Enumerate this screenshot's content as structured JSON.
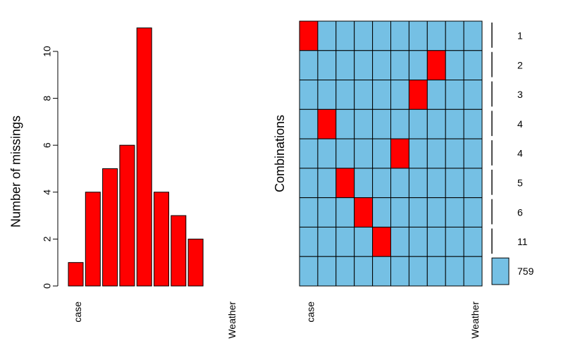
{
  "chart_data": [
    {
      "type": "bar",
      "ylabel": "Number of missings",
      "ylim": [
        0,
        11.5
      ],
      "yticks": [
        0,
        2,
        4,
        6,
        8,
        10
      ],
      "bar_color": "#ff0000",
      "categories": [
        "case",
        "",
        "",
        "",
        "",
        "",
        "",
        "",
        "",
        "Weather"
      ],
      "values": [
        1,
        4,
        5,
        6,
        11,
        4,
        3,
        2,
        0,
        0
      ]
    },
    {
      "type": "heatmap",
      "ylabel": "Combinations",
      "present_color": "#75c0e4",
      "missing_color": "#ff0000",
      "columns": [
        "case",
        "",
        "",
        "",
        "",
        "",
        "",
        "",
        "",
        "Weather"
      ],
      "rows": [
        {
          "missing_col": 0,
          "count": "1",
          "frequency": 1
        },
        {
          "missing_col": 7,
          "count": "2",
          "frequency": 1
        },
        {
          "missing_col": 6,
          "count": "3",
          "frequency": 1
        },
        {
          "missing_col": 1,
          "count": "4",
          "frequency": 1
        },
        {
          "missing_col": 5,
          "count": "4",
          "frequency": 1
        },
        {
          "missing_col": 2,
          "count": "5",
          "frequency": 1
        },
        {
          "missing_col": 3,
          "count": "6",
          "frequency": 1
        },
        {
          "missing_col": 4,
          "count": "11",
          "frequency": 1
        },
        {
          "missing_col": -1,
          "count": "759",
          "frequency": 759
        }
      ]
    }
  ]
}
